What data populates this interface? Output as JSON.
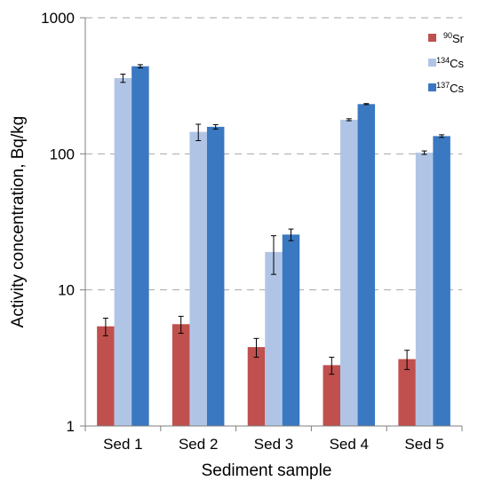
{
  "chart_data": {
    "type": "bar",
    "title": "",
    "xlabel": "Sediment sample",
    "ylabel": "Activity concentration, Bq/kg",
    "yscale": "log",
    "ylim": [
      1,
      1000
    ],
    "yticks": [
      1,
      10,
      100,
      1000
    ],
    "ytick_labels": [
      "1",
      "10",
      "100",
      "1000"
    ],
    "grid": "horizontal dashed",
    "legend_position": "top-right",
    "categories": [
      "Sed 1",
      "Sed 2",
      "Sed 3",
      "Sed 4",
      "Sed 5"
    ],
    "series": [
      {
        "name": "90Sr",
        "name_mass": "90",
        "name_symbol": "Sr",
        "color": "#c0504d",
        "values": [
          5.4,
          5.6,
          3.8,
          2.8,
          3.1
        ],
        "error": [
          0.8,
          0.8,
          0.6,
          0.4,
          0.5
        ]
      },
      {
        "name": "134Cs",
        "name_mass": "134",
        "name_symbol": "Cs",
        "color": "#b0c5e6",
        "values": [
          360,
          145,
          19,
          178,
          102
        ],
        "error": [
          25,
          20,
          6,
          3,
          3
        ]
      },
      {
        "name": "137Cs",
        "name_mass": "137",
        "name_symbol": "Cs",
        "color": "#3a78c1",
        "values": [
          440,
          158,
          25.5,
          232,
          135
        ],
        "error": [
          12,
          6,
          2.5,
          2,
          3
        ]
      }
    ]
  }
}
